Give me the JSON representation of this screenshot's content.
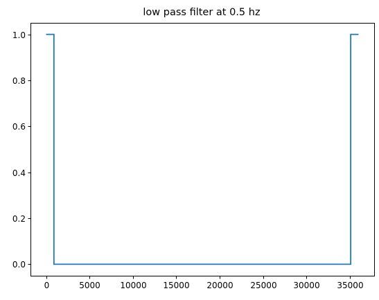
{
  "chart_data": {
    "type": "line",
    "title": "low pass filter at 0.5 hz",
    "xlabel": "",
    "ylabel": "",
    "xlim": [
      -1800,
      37800
    ],
    "ylim": [
      -0.05,
      1.05
    ],
    "x_ticks": [
      0,
      5000,
      10000,
      15000,
      20000,
      25000,
      30000,
      35000
    ],
    "x_tick_labels": [
      "0",
      "5000",
      "10000",
      "15000",
      "20000",
      "25000",
      "30000",
      "35000"
    ],
    "y_ticks": [
      0.0,
      0.2,
      0.4,
      0.6,
      0.8,
      1.0
    ],
    "y_tick_labels": [
      "0.0",
      "0.2",
      "0.4",
      "0.6",
      "0.8",
      "1.0"
    ],
    "grid": false,
    "series": [
      {
        "color": "#1f77b4",
        "x": [
          0,
          900,
          900,
          35100,
          35100,
          36000
        ],
        "y": [
          1.0,
          1.0,
          0.0,
          0.0,
          1.0,
          1.0
        ]
      }
    ]
  }
}
